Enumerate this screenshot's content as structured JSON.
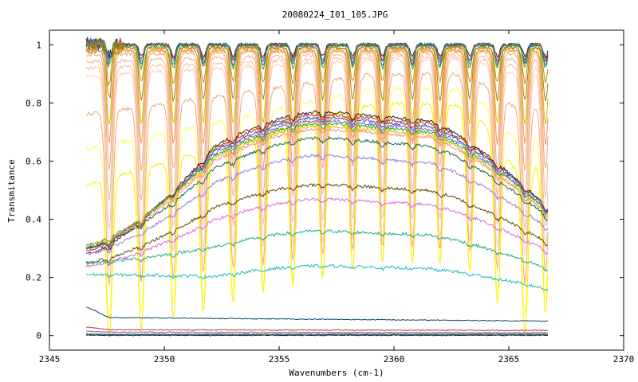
{
  "chart_data": {
    "type": "line",
    "title": "20080224_I01_105.JPG",
    "xlabel": "Wavenumbers (cm-1)",
    "ylabel": "Transmitance",
    "xlim": [
      2345,
      2370
    ],
    "ylim": [
      -0.05,
      1.05
    ],
    "x_ticks": [
      2345,
      2350,
      2355,
      2360,
      2365,
      2370
    ],
    "y_ticks": [
      0,
      0.2,
      0.4,
      0.6,
      0.8,
      1
    ],
    "x_tick_labels": [
      "2345",
      "2350",
      "2355",
      "2360",
      "2365",
      "2370"
    ],
    "y_tick_labels": [
      "0",
      "0.2",
      "0.4",
      "0.6",
      "0.8",
      "1"
    ],
    "x_range_data": [
      2346.6,
      2366.7
    ],
    "grid": false,
    "legend": "none",
    "absorption_line_positions": [
      2347.6,
      2349.0,
      2350.4,
      2351.7,
      2353.0,
      2354.3,
      2355.6,
      2356.9,
      2358.2,
      2359.5,
      2360.8,
      2362.0,
      2363.3,
      2364.5,
      2365.7,
      2366.6
    ],
    "series": [
      {
        "color": "#222222",
        "baseline": 1.0,
        "band_depth": 0.0,
        "line_depth": 0.04
      },
      {
        "color": "#cc2222",
        "baseline": 1.0,
        "band_depth": 0.0,
        "line_depth": 0.05
      },
      {
        "color": "#8855cc",
        "baseline": 1.0,
        "band_depth": 0.0,
        "line_depth": 0.06
      },
      {
        "color": "#2255cc",
        "baseline": 1.0,
        "band_depth": 0.0,
        "line_depth": 0.07
      },
      {
        "color": "#22aa22",
        "baseline": 1.0,
        "band_depth": 0.0,
        "line_depth": 0.08
      },
      {
        "color": "#cc8800",
        "baseline": 0.99,
        "band_depth": 0.0,
        "line_depth": 0.12
      },
      {
        "color": "#aa7722",
        "baseline": 0.99,
        "band_depth": 0.0,
        "line_depth": 0.18
      },
      {
        "color": "#ddbb00",
        "baseline": 0.98,
        "band_depth": 0.0,
        "line_depth": 0.25
      },
      {
        "color": "#ee9955",
        "baseline": 0.98,
        "band_depth": 0.0,
        "line_depth": 0.32
      },
      {
        "color": "#f4a774",
        "baseline": 0.98,
        "band_depth": 0.02,
        "line_depth": 0.4
      },
      {
        "color": "#f5b48a",
        "baseline": 0.97,
        "band_depth": 0.04,
        "line_depth": 0.48
      },
      {
        "color": "#f7c2a0",
        "baseline": 0.96,
        "band_depth": 0.06,
        "line_depth": 0.56
      },
      {
        "color": "#f9d0b6",
        "baseline": 0.95,
        "band_depth": 0.08,
        "line_depth": 0.62
      },
      {
        "color": "#f4a774",
        "baseline": 0.9,
        "band_depth": 0.2,
        "line_depth": 0.6
      },
      {
        "color": "#ffff55",
        "baseline": 0.85,
        "band_depth": 0.3,
        "line_depth": 0.6
      },
      {
        "color": "#ffee00",
        "baseline": 0.8,
        "band_depth": 0.4,
        "line_depth": 0.55
      },
      {
        "color": "#222222",
        "peak": 0.77,
        "edge_left": 0.28,
        "edge_right": 0.44
      },
      {
        "color": "#cc2222",
        "peak": 0.76,
        "edge_left": 0.29,
        "edge_right": 0.44
      },
      {
        "color": "#2255cc",
        "peak": 0.75,
        "edge_left": 0.3,
        "edge_right": 0.44
      },
      {
        "color": "#8855cc",
        "peak": 0.74,
        "edge_left": 0.3,
        "edge_right": 0.43
      },
      {
        "color": "#22aa22",
        "peak": 0.73,
        "edge_left": 0.31,
        "edge_right": 0.43
      },
      {
        "color": "#ddbb00",
        "peak": 0.72,
        "edge_left": 0.31,
        "edge_right": 0.42
      },
      {
        "color": "#ff8888",
        "peak": 0.71,
        "edge_left": 0.3,
        "edge_right": 0.42
      },
      {
        "color": "#116644",
        "peak": 0.68,
        "edge_left": 0.3,
        "edge_right": 0.41
      },
      {
        "color": "#9977dd",
        "peak": 0.62,
        "edge_left": 0.28,
        "edge_right": 0.37
      },
      {
        "color": "#664400",
        "peak": 0.52,
        "edge_left": 0.25,
        "edge_right": 0.32
      },
      {
        "color": "#dd66dd",
        "peak": 0.47,
        "edge_left": 0.24,
        "edge_right": 0.29
      },
      {
        "color": "#22aa88",
        "peak": 0.36,
        "edge_left": 0.25,
        "edge_right": 0.23
      },
      {
        "color": "#22bbbb",
        "peak": 0.24,
        "edge_left": 0.21,
        "edge_right": 0.16
      },
      {
        "color": "#114466",
        "flat_start": 0.1,
        "flat": 0.062,
        "flat_end": 0.05
      },
      {
        "color": "#aa4444",
        "flat_start": 0.03,
        "flat": 0.02,
        "flat_end": 0.018
      },
      {
        "color": "#aa44aa",
        "flat_start": 0.015,
        "flat": 0.012,
        "flat_end": 0.01
      },
      {
        "color": "#22aa22",
        "flat_start": 0.006,
        "flat": 0.005,
        "flat_end": 0.006
      },
      {
        "color": "#2255cc",
        "flat_start": 0.004,
        "flat": 0.003,
        "flat_end": 0.003
      },
      {
        "color": "#222222",
        "flat_start": 0.002,
        "flat": 0.001,
        "flat_end": 0.001
      }
    ]
  }
}
